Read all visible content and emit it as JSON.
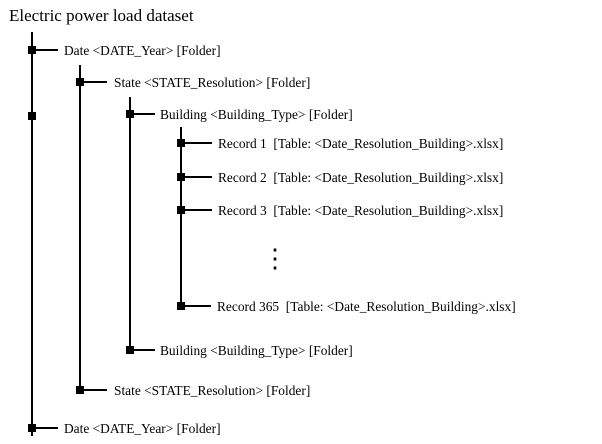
{
  "title": "Electric power load dataset",
  "nodes": [
    {
      "label": "Date <DATE_Year> [Folder]"
    },
    {
      "label": "State <STATE_Resolution> [Folder]"
    },
    {
      "label": "Building <Building_Type> [Folder]"
    },
    {
      "label": "Record 1  [Table: <Date_Resolution_Building>.xlsx]"
    },
    {
      "label": "Record 2  [Table: <Date_Resolution_Building>.xlsx]"
    },
    {
      "label": "Record 3  [Table: <Date_Resolution_Building>.xlsx]"
    },
    {
      "label": "Record 365  [Table: <Date_Resolution_Building>.xlsx]"
    },
    {
      "label": "Building <Building_Type> [Folder]"
    },
    {
      "label": "State <STATE_Resolution> [Folder]"
    },
    {
      "label": "Date <DATE_Year> [Folder]"
    }
  ],
  "ellipsis": "⋮"
}
